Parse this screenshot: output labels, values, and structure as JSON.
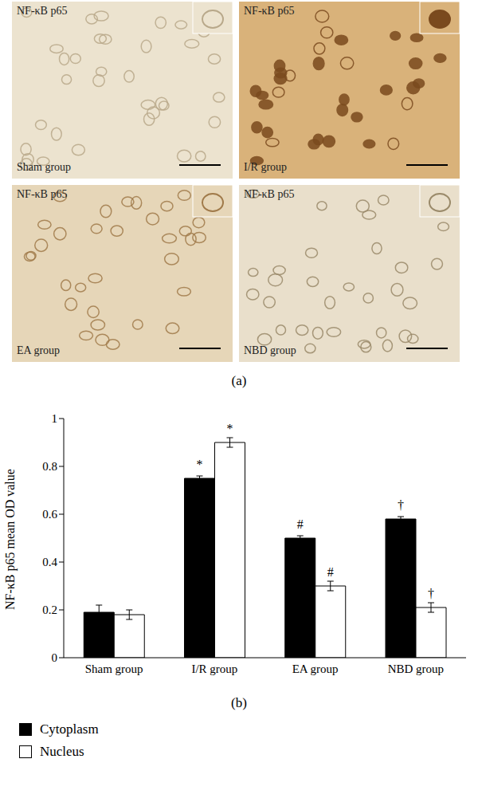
{
  "panel_a": {
    "label": "(a)",
    "images": [
      {
        "stain": "NF-κB p65",
        "group": "Sham group"
      },
      {
        "stain": "NF-κB p65",
        "group": "I/R group"
      },
      {
        "stain": "NF-κB p65",
        "group": "EA group"
      },
      {
        "stain": "NF-κB p65",
        "group": "NBD group"
      }
    ]
  },
  "panel_b_label": "(b)",
  "chart_data": {
    "type": "bar",
    "y_label": "NF-κB p65 mean OD value",
    "categories": [
      "Sham group",
      "I/R group",
      "EA group",
      "NBD group"
    ],
    "series": [
      {
        "name": "Cytoplasm",
        "color": "#000000",
        "values": [
          0.19,
          0.75,
          0.5,
          0.58
        ],
        "errors": [
          0.03,
          0.01,
          0.01,
          0.01
        ],
        "significance": [
          null,
          "*",
          "#",
          "†"
        ]
      },
      {
        "name": "Nucleus",
        "color": "#ffffff",
        "values": [
          0.18,
          0.9,
          0.3,
          0.21
        ],
        "errors": [
          0.02,
          0.02,
          0.02,
          0.02
        ],
        "significance": [
          null,
          "*",
          "#",
          "†"
        ]
      }
    ],
    "ylim": [
      0,
      1
    ],
    "yticks": [
      0,
      0.2,
      0.4,
      0.6,
      0.8,
      1
    ],
    "grid": false,
    "legend": "bottom left"
  }
}
